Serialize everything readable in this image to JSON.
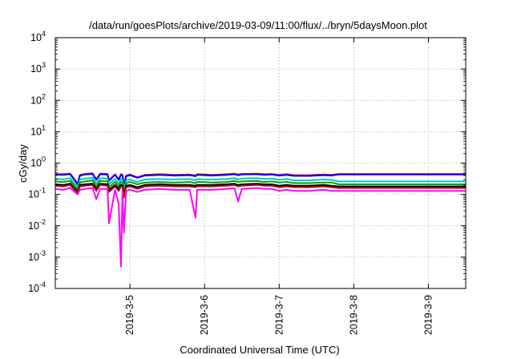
{
  "chart_data": {
    "type": "line",
    "title": "/data/run/goesPlots/archive/2019-03-09/11:00/flux/../bryn/5daysMoon.plot",
    "xlabel": "Coordinated Universal Time (UTC)",
    "ylabel": "cGy/day",
    "y_scale": "log",
    "ylim_exponents": [
      -4,
      4
    ],
    "yticks": [
      {
        "base": "10",
        "exp": "-4"
      },
      {
        "base": "10",
        "exp": "-3"
      },
      {
        "base": "10",
        "exp": "-2"
      },
      {
        "base": "10",
        "exp": "-1"
      },
      {
        "base": "10",
        "exp": "0"
      },
      {
        "base": "10",
        "exp": "1"
      },
      {
        "base": "10",
        "exp": "2"
      },
      {
        "base": "10",
        "exp": "3"
      },
      {
        "base": "10",
        "exp": "4"
      }
    ],
    "xlim_days": [
      4.0,
      9.5
    ],
    "xticks": [
      {
        "label": "2019-3-5",
        "day": 5
      },
      {
        "label": "2019-3-6",
        "day": 6
      },
      {
        "label": "2019-3-7",
        "day": 7
      },
      {
        "label": "2019-3-8",
        "day": 8
      },
      {
        "label": "2019-3-9",
        "day": 9
      }
    ],
    "grid": true,
    "x": [
      4.0,
      4.1,
      4.2,
      4.3,
      4.33,
      4.4,
      4.5,
      4.55,
      4.6,
      4.7,
      4.72,
      4.8,
      4.85,
      4.88,
      4.9,
      4.92,
      4.95,
      5.0,
      5.1,
      5.2,
      5.4,
      5.6,
      5.8,
      5.88,
      5.9,
      6.0,
      6.1,
      6.3,
      6.4,
      6.45,
      6.5,
      6.7,
      6.8,
      6.9,
      7.0,
      7.1,
      7.2,
      7.4,
      7.6,
      7.7,
      7.8,
      8.0,
      8.5,
      9.0,
      9.5
    ],
    "series": [
      {
        "color": "#ff0000",
        "values": [
          0.45,
          0.44,
          0.46,
          0.22,
          0.42,
          0.45,
          0.47,
          0.3,
          0.46,
          0.45,
          0.28,
          0.44,
          0.3,
          0.44,
          0.42,
          0.2,
          0.4,
          0.43,
          0.35,
          0.42,
          0.44,
          0.42,
          0.43,
          0.4,
          0.44,
          0.43,
          0.42,
          0.44,
          0.46,
          0.43,
          0.45,
          0.46,
          0.44,
          0.45,
          0.42,
          0.44,
          0.41,
          0.41,
          0.43,
          0.42,
          0.45,
          0.45,
          0.45,
          0.45,
          0.45
        ]
      },
      {
        "color": "#0000ff",
        "values": [
          0.43,
          0.42,
          0.44,
          0.21,
          0.4,
          0.43,
          0.45,
          0.29,
          0.44,
          0.43,
          0.27,
          0.42,
          0.29,
          0.42,
          0.4,
          0.19,
          0.38,
          0.41,
          0.34,
          0.4,
          0.42,
          0.4,
          0.41,
          0.38,
          0.42,
          0.41,
          0.4,
          0.42,
          0.44,
          0.41,
          0.43,
          0.44,
          0.42,
          0.43,
          0.4,
          0.42,
          0.39,
          0.39,
          0.41,
          0.4,
          0.43,
          0.43,
          0.43,
          0.43,
          0.43
        ]
      },
      {
        "color": "#00c8c8",
        "values": [
          0.32,
          0.3,
          0.33,
          0.17,
          0.3,
          0.32,
          0.34,
          0.22,
          0.33,
          0.32,
          0.21,
          0.31,
          0.22,
          0.31,
          0.29,
          0.14,
          0.28,
          0.3,
          0.25,
          0.3,
          0.31,
          0.3,
          0.31,
          0.28,
          0.31,
          0.3,
          0.3,
          0.31,
          0.33,
          0.3,
          0.32,
          0.33,
          0.31,
          0.32,
          0.29,
          0.31,
          0.28,
          0.28,
          0.3,
          0.29,
          0.26,
          0.26,
          0.26,
          0.26,
          0.26
        ]
      },
      {
        "color": "#00a000",
        "values": [
          0.26,
          0.25,
          0.27,
          0.14,
          0.24,
          0.26,
          0.28,
          0.18,
          0.27,
          0.26,
          0.17,
          0.25,
          0.18,
          0.25,
          0.24,
          0.11,
          0.23,
          0.25,
          0.21,
          0.24,
          0.25,
          0.24,
          0.25,
          0.23,
          0.25,
          0.25,
          0.24,
          0.25,
          0.27,
          0.25,
          0.26,
          0.27,
          0.25,
          0.26,
          0.24,
          0.25,
          0.23,
          0.23,
          0.24,
          0.24,
          0.21,
          0.21,
          0.21,
          0.21,
          0.21
        ]
      },
      {
        "color": "#000000",
        "values": [
          0.21,
          0.2,
          0.22,
          0.12,
          0.2,
          0.21,
          0.22,
          0.15,
          0.22,
          0.21,
          0.14,
          0.2,
          0.15,
          0.2,
          0.19,
          0.09,
          0.19,
          0.2,
          0.17,
          0.2,
          0.21,
          0.2,
          0.2,
          0.19,
          0.2,
          0.2,
          0.2,
          0.21,
          0.22,
          0.2,
          0.21,
          0.22,
          0.21,
          0.21,
          0.19,
          0.2,
          0.19,
          0.19,
          0.2,
          0.19,
          0.18,
          0.18,
          0.18,
          0.18,
          0.18
        ]
      },
      {
        "color": "#a01010",
        "values": [
          0.19,
          0.18,
          0.2,
          0.11,
          0.18,
          0.19,
          0.2,
          0.13,
          0.2,
          0.19,
          0.12,
          0.18,
          0.13,
          0.18,
          0.17,
          0.08,
          0.17,
          0.18,
          0.15,
          0.18,
          0.19,
          0.18,
          0.18,
          0.17,
          0.18,
          0.18,
          0.18,
          0.19,
          0.2,
          0.18,
          0.19,
          0.2,
          0.19,
          0.19,
          0.17,
          0.18,
          0.17,
          0.17,
          0.18,
          0.17,
          0.16,
          0.16,
          0.16,
          0.16,
          0.16
        ]
      },
      {
        "color": "#ff00ff",
        "values": [
          0.15,
          0.14,
          0.16,
          0.1,
          0.14,
          0.15,
          0.16,
          0.07,
          0.15,
          0.15,
          0.012,
          0.14,
          0.05,
          0.0005,
          0.13,
          0.006,
          0.13,
          0.14,
          0.12,
          0.14,
          0.15,
          0.14,
          0.14,
          0.018,
          0.14,
          0.14,
          0.14,
          0.15,
          0.16,
          0.06,
          0.15,
          0.16,
          0.15,
          0.15,
          0.13,
          0.14,
          0.13,
          0.13,
          0.14,
          0.13,
          0.13,
          0.13,
          0.13,
          0.13,
          0.13
        ]
      }
    ]
  }
}
